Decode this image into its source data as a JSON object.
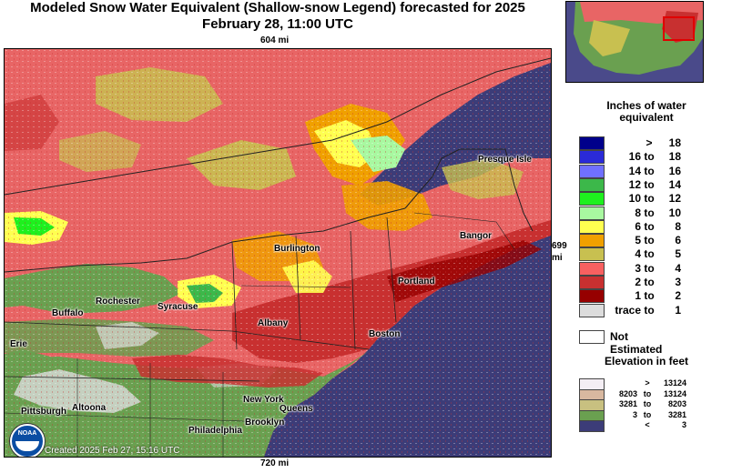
{
  "header": {
    "title_line1": "Modeled Snow Water Equivalent (Shallow-snow Legend) forecasted for 2025",
    "title_line2": "February 28, 11:00 UTC"
  },
  "scale": {
    "top": "604 mi",
    "bottom": "720 mi",
    "right_line1": "699",
    "right_line2": "mi"
  },
  "cities": [
    {
      "name": "Presque Isle"
    },
    {
      "name": "Bangor"
    },
    {
      "name": "Burlington"
    },
    {
      "name": "Portland"
    },
    {
      "name": "Rochester"
    },
    {
      "name": "Syracuse"
    },
    {
      "name": "Buffalo"
    },
    {
      "name": "Albany"
    },
    {
      "name": "Boston"
    },
    {
      "name": "Erie"
    },
    {
      "name": "Pittsburgh"
    },
    {
      "name": "Altoona"
    },
    {
      "name": "New York"
    },
    {
      "name": "Queens"
    },
    {
      "name": "Brooklyn"
    },
    {
      "name": "Philadelphia"
    }
  ],
  "footer": {
    "created": "Created 2025 Feb 27, 15:16 UTC",
    "logo_text": "NOAA"
  },
  "legend": {
    "title_line1": "Inches of water",
    "title_line2": "equivalent",
    "rows": [
      {
        "low": "",
        "to": ">",
        "high": "18",
        "color": "#00008b"
      },
      {
        "low": "16",
        "to": "to",
        "high": "18",
        "color": "#2a2ad8"
      },
      {
        "low": "14",
        "to": "to",
        "high": "16",
        "color": "#7070ff"
      },
      {
        "low": "12",
        "to": "to",
        "high": "14",
        "color": "#3cb84a"
      },
      {
        "low": "10",
        "to": "to",
        "high": "12",
        "color": "#1ef01e"
      },
      {
        "low": "8",
        "to": "to",
        "high": "10",
        "color": "#a8f8a0"
      },
      {
        "low": "6",
        "to": "to",
        "high": "8",
        "color": "#ffff50"
      },
      {
        "low": "5",
        "to": "to",
        "high": "6",
        "color": "#f0a000"
      },
      {
        "low": "4",
        "to": "to",
        "high": "5",
        "color": "#c8c050"
      },
      {
        "low": "3",
        "to": "to",
        "high": "4",
        "color": "#f86060"
      },
      {
        "low": "2",
        "to": "to",
        "high": "3",
        "color": "#c83030"
      },
      {
        "low": "1",
        "to": "to",
        "high": "2",
        "color": "#960000"
      },
      {
        "low": "trace",
        "to": "to",
        "high": "1",
        "color": "#dcdcdc"
      }
    ],
    "not_estimated": "Not Estimated",
    "elevation_title": "Elevation in feet",
    "elevation_rows": [
      {
        "low": "",
        "to": ">",
        "high": "13124",
        "color": "#f4eef4"
      },
      {
        "low": "8203",
        "to": "to",
        "high": "13124",
        "color": "#d8b8a0"
      },
      {
        "low": "3281",
        "to": "to",
        "high": "8203",
        "color": "#c8c080"
      },
      {
        "low": "3",
        "to": "to",
        "high": "3281",
        "color": "#6aa050"
      },
      {
        "low": "",
        "to": "<",
        "high": "3",
        "color": "#3c3c78"
      }
    ]
  }
}
